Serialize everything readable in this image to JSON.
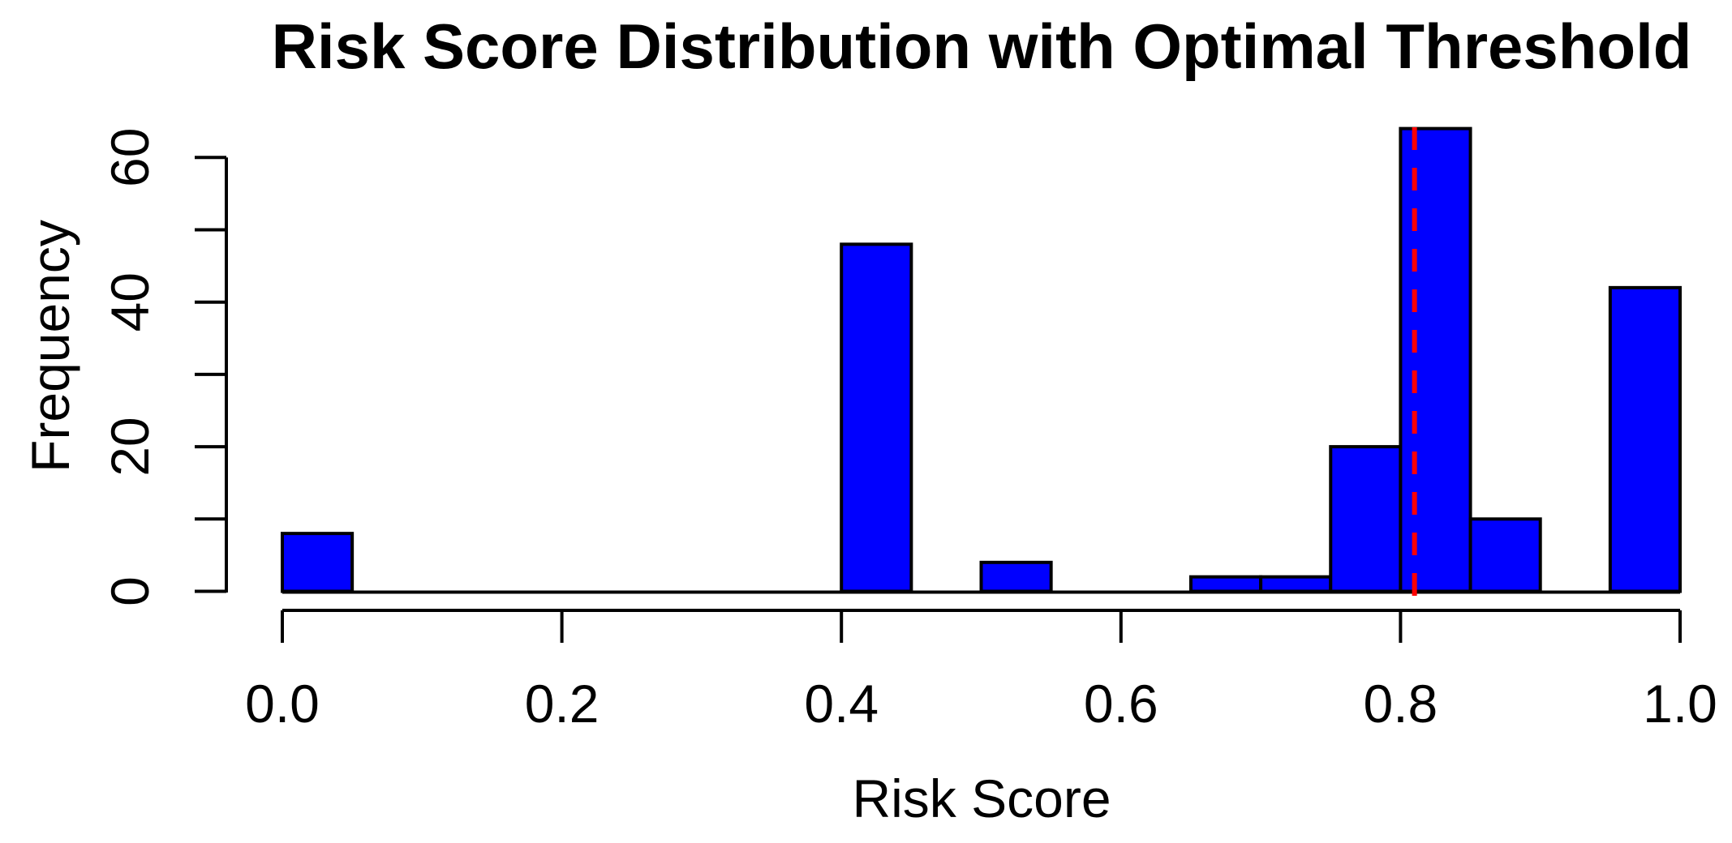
{
  "chart_data": {
    "type": "bar",
    "subtype": "histogram",
    "title": "Risk Score Distribution with Optimal Threshold",
    "xlabel": "Risk Score",
    "ylabel": "Frequency",
    "xlim": [
      0.0,
      1.0
    ],
    "ylim": [
      0,
      64
    ],
    "grid": false,
    "legend_position": "none",
    "bin_width": 0.05,
    "bin_starts": [
      0.0,
      0.05,
      0.1,
      0.15,
      0.2,
      0.25,
      0.3,
      0.35,
      0.4,
      0.45,
      0.5,
      0.55,
      0.6,
      0.65,
      0.7,
      0.75,
      0.8,
      0.85,
      0.9,
      0.95
    ],
    "counts": [
      8,
      0,
      0,
      0,
      0,
      0,
      0,
      0,
      48,
      0,
      4,
      0,
      0,
      2,
      2,
      20,
      64,
      10,
      0,
      42
    ],
    "x_tick_values": [
      0.0,
      0.2,
      0.4,
      0.6,
      0.8,
      1.0
    ],
    "x_tick_labels": [
      "0.0",
      "0.2",
      "0.4",
      "0.6",
      "0.8",
      "1.0"
    ],
    "y_tick_values": [
      0,
      10,
      20,
      30,
      40,
      50,
      60
    ],
    "y_tick_labels": [
      "0",
      "",
      "20",
      "",
      "40",
      "",
      "60"
    ],
    "threshold_line": {
      "x": 0.81,
      "style": "dashed",
      "color": "#ff0000"
    },
    "colors": {
      "bar_fill": "#0000ff",
      "bar_border": "#000000",
      "axis": "#000000",
      "text": "#000000",
      "background": "#ffffff"
    }
  }
}
